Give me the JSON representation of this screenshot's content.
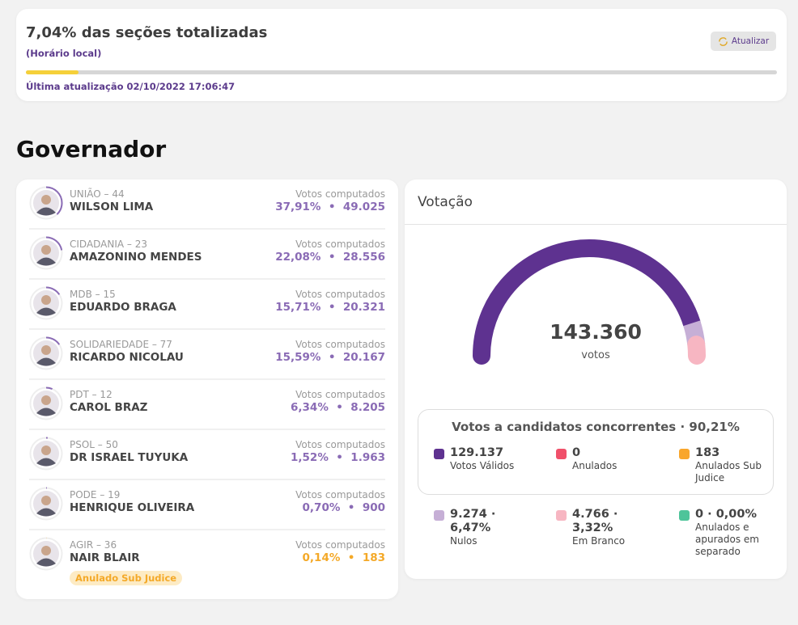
{
  "header": {
    "title": "7,04% das seções totalizadas",
    "subtitle": "(Horário local)",
    "progress_percent": 7.04,
    "progress_color": "#f5d03a",
    "last_update": "Última atualização 02/10/2022 17:06:47",
    "refresh_label": "Atualizar"
  },
  "section_title": "Governador",
  "candidates": [
    {
      "party": "UNIÃO – 44",
      "name": "WILSON LIMA",
      "votes_label": "Votos computados",
      "percent": "37,91%",
      "votes": "49.025",
      "share": 37.91
    },
    {
      "party": "CIDADANIA – 23",
      "name": "AMAZONINO MENDES",
      "votes_label": "Votos computados",
      "percent": "22,08%",
      "votes": "28.556",
      "share": 22.08
    },
    {
      "party": "MDB – 15",
      "name": "EDUARDO BRAGA",
      "votes_label": "Votos computados",
      "percent": "15,71%",
      "votes": "20.321",
      "share": 15.71
    },
    {
      "party": "SOLIDARIEDADE – 77",
      "name": "RICARDO NICOLAU",
      "votes_label": "Votos computados",
      "percent": "15,59%",
      "votes": "20.167",
      "share": 15.59
    },
    {
      "party": "PDT – 12",
      "name": "CAROL BRAZ",
      "votes_label": "Votos computados",
      "percent": "6,34%",
      "votes": "8.205",
      "share": 6.34
    },
    {
      "party": "PSOL – 50",
      "name": "DR ISRAEL TUYUKA",
      "votes_label": "Votos computados",
      "percent": "1,52%",
      "votes": "1.963",
      "share": 1.52
    },
    {
      "party": "PODE – 19",
      "name": "HENRIQUE OLIVEIRA",
      "votes_label": "Votos computados",
      "percent": "0,70%",
      "votes": "900",
      "share": 0.7
    },
    {
      "party": "AGIR – 36",
      "name": "NAIR BLAIR",
      "votes_label": "Votos computados",
      "percent": "0,14%",
      "votes": "183",
      "share": 0.14,
      "badge": "Anulado Sub Judice",
      "color": "#f4a928"
    }
  ],
  "votacao": {
    "title": "Votação",
    "total": "143.360",
    "total_label": "votos",
    "gauge": [
      {
        "share": 90.21,
        "color": "#5e3290"
      },
      {
        "share": 6.47,
        "color": "#c6afd6"
      },
      {
        "share": 3.32,
        "color": "#f7b6c2"
      }
    ],
    "box_title": "Votos a candidatos concorrentes · 90,21%",
    "legend": [
      {
        "value": "129.137",
        "label": "Votos Válidos",
        "color": "#5e3290"
      },
      {
        "value": "0",
        "label": "Anulados",
        "color": "#f0506a"
      },
      {
        "value": "183",
        "label": "Anulados Sub Judice",
        "color": "#f9a62b"
      },
      {
        "value": "9.274 · 6,47%",
        "label": "Nulos",
        "color": "#c6afd6"
      },
      {
        "value": "4.766 · 3,32%",
        "label": "Em Branco",
        "color": "#f7b6c2"
      },
      {
        "value": "0 · 0,00%",
        "label": "Anulados e apurados em separado",
        "color": "#4ec49a"
      }
    ]
  }
}
